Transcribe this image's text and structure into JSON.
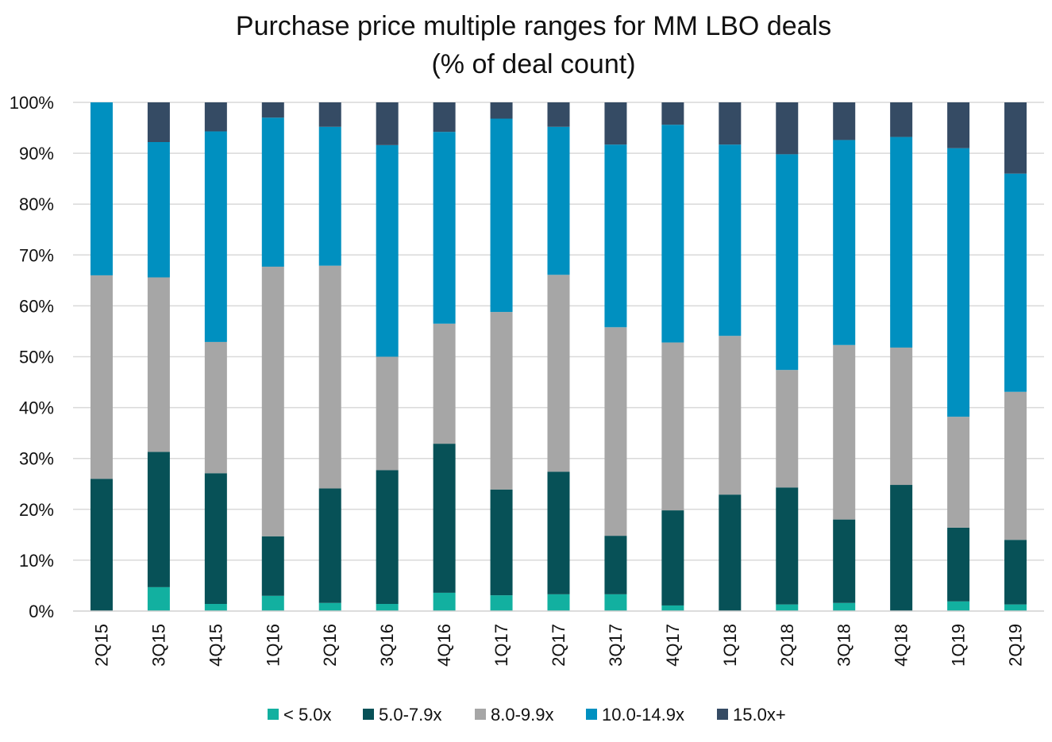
{
  "chart_data": {
    "type": "bar",
    "stacked": true,
    "title": [
      "Purchase price multiple ranges for MM LBO deals",
      "(% of deal count)"
    ],
    "categories": [
      "2Q15",
      "3Q15",
      "4Q15",
      "1Q16",
      "2Q16",
      "3Q16",
      "4Q16",
      "1Q17",
      "2Q17",
      "3Q17",
      "4Q17",
      "1Q18",
      "2Q18",
      "3Q18",
      "4Q18",
      "1Q19",
      "2Q19"
    ],
    "ylim": [
      0,
      100
    ],
    "yticks": [
      0,
      10,
      20,
      30,
      40,
      50,
      60,
      70,
      80,
      90,
      100
    ],
    "ytick_labels": [
      "0%",
      "10%",
      "20%",
      "30%",
      "40%",
      "50%",
      "60%",
      "70%",
      "80%",
      "90%",
      "100%"
    ],
    "legend_position": "bottom",
    "grid": true,
    "series": [
      {
        "name": "< 5.0x",
        "color": "#12b0a0",
        "values": [
          0,
          4.7,
          1.4,
          3.0,
          1.6,
          1.4,
          3.6,
          3.1,
          3.3,
          3.3,
          1.1,
          0,
          1.3,
          1.6,
          0,
          1.9,
          1.3
        ]
      },
      {
        "name": "5.0-7.9x",
        "color": "#075157",
        "values": [
          26.0,
          26.6,
          25.7,
          11.7,
          22.5,
          26.3,
          29.3,
          20.8,
          24.1,
          11.5,
          18.7,
          22.9,
          23.0,
          16.4,
          24.8,
          14.5,
          12.7
        ]
      },
      {
        "name": "8.0-9.9x",
        "color": "#a6a6a6",
        "values": [
          40.0,
          34.3,
          25.8,
          53.0,
          43.8,
          22.3,
          23.6,
          34.9,
          38.7,
          41.0,
          33.0,
          31.2,
          23.1,
          34.3,
          27.0,
          21.8,
          29.1
        ]
      },
      {
        "name": "10.0-14.9x",
        "color": "#0090c0",
        "values": [
          34.0,
          26.6,
          41.4,
          29.3,
          27.3,
          41.6,
          37.7,
          38.0,
          29.1,
          35.9,
          42.8,
          37.6,
          42.4,
          40.3,
          41.4,
          52.8,
          42.9
        ]
      },
      {
        "name": "15.0x+",
        "color": "#354b64",
        "values": [
          0,
          7.8,
          5.7,
          3.0,
          4.8,
          8.4,
          5.8,
          3.2,
          4.8,
          8.3,
          4.4,
          8.3,
          10.2,
          7.4,
          6.8,
          9.0,
          14.0
        ]
      }
    ]
  }
}
